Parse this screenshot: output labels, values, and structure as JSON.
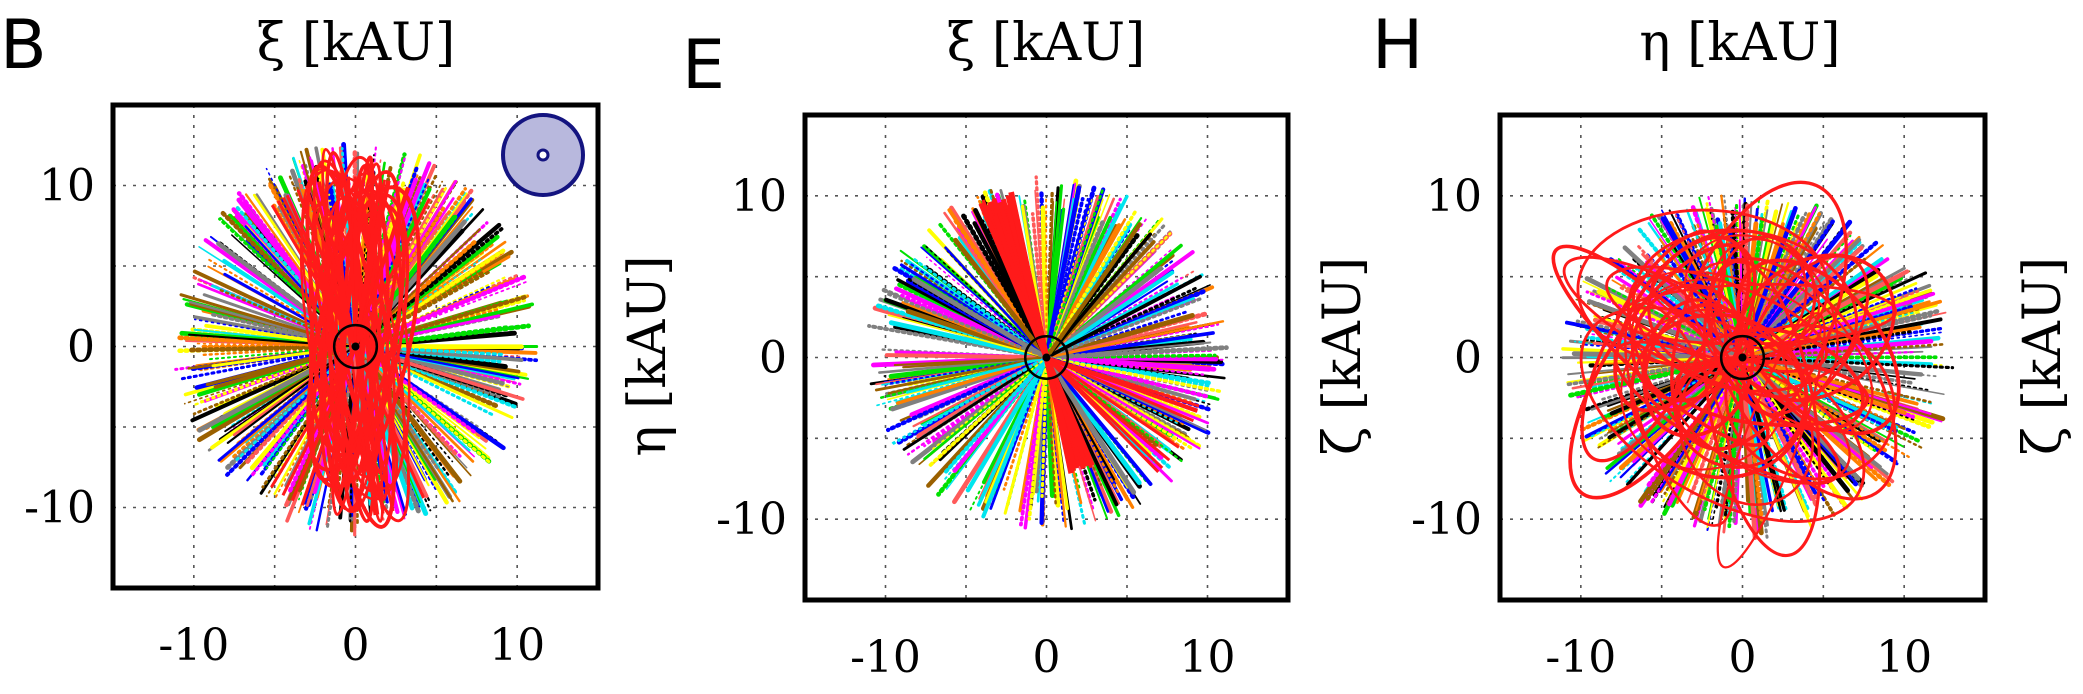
{
  "chart_data": [
    {
      "type": "scatter",
      "panel_label": "B",
      "xlabel": "ξ [kAU]",
      "ylabel": "",
      "xlim": [
        -15,
        15
      ],
      "ylim": [
        -15,
        15
      ],
      "xticks": [
        -10,
        0,
        10
      ],
      "yticks": [
        -10,
        0,
        10
      ],
      "xtick_labels": [
        "-10",
        "0",
        "10"
      ],
      "ytick_labels": [
        "-10",
        "0",
        "10"
      ],
      "grid": true,
      "inset": "solar-disk-icon",
      "extent": {
        "x": [
          -11,
          11
        ],
        "y": [
          -11.5,
          12.5
        ]
      },
      "central_circle_radius": 1.2
    },
    {
      "type": "scatter",
      "panel_label": "E",
      "xlabel": "ξ [kAU]",
      "ylabel": "η [kAU]",
      "xlim": [
        -15,
        15
      ],
      "ylim": [
        -15,
        15
      ],
      "xticks": [
        -10,
        0,
        10
      ],
      "yticks": [
        -10,
        0,
        10
      ],
      "xtick_labels": [
        "-10",
        "0",
        "10"
      ],
      "ytick_labels": [
        "-10",
        "0",
        "10"
      ],
      "grid": true,
      "extent": {
        "x": [
          -11,
          11
        ],
        "y": [
          -10.5,
          11
        ]
      },
      "central_circle_radius": 1.2
    },
    {
      "type": "scatter",
      "panel_label": "H",
      "xlabel": "η [kAU]",
      "ylabel": "ζ [kAU]",
      "right_label": "ζ [kAU]",
      "xlim": [
        -15,
        15
      ],
      "ylim": [
        -15,
        15
      ],
      "xticks": [
        -10,
        0,
        10
      ],
      "yticks": [
        -10,
        0,
        10
      ],
      "xtick_labels": [
        "-10",
        "0",
        "10"
      ],
      "ytick_labels": [
        "-10",
        "0",
        "10"
      ],
      "grid": true,
      "extent": {
        "x": [
          -11,
          13
        ],
        "y": [
          -11,
          10
        ]
      },
      "central_circle_radius": 1.2
    }
  ],
  "colors": {
    "primary_orbit": "#ff1a1a",
    "palette": [
      "#ff00ff",
      "#00e000",
      "#0000ff",
      "#00e5ee",
      "#000000",
      "#808080",
      "#ffff00",
      "#ff8000",
      "#9a6000",
      "#ff5a5a"
    ],
    "inset_fill": "#b8b8dd",
    "inset_stroke": "#141480"
  }
}
